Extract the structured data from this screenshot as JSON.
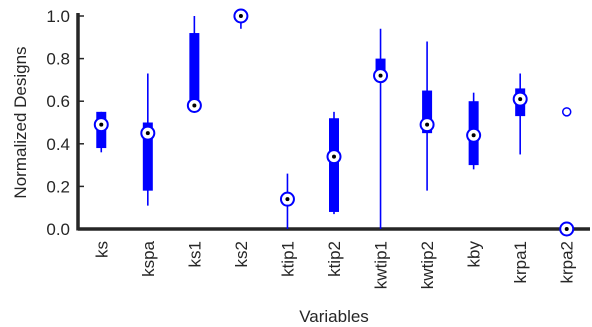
{
  "chart_data": {
    "type": "boxplot",
    "title": "",
    "xlabel": "Variables",
    "ylabel": "Normalized Designs",
    "ylim": [
      0,
      1
    ],
    "yticks": [
      "0.0",
      "0.2",
      "0.4",
      "0.6",
      "0.8",
      "1.0"
    ],
    "grid": false,
    "box_color": "#0000ff",
    "categories": [
      "ks",
      "kspa",
      "ks1",
      "ks2",
      "ktip1",
      "ktip2",
      "kwtip1",
      "kwtip2",
      "kby",
      "krpa1",
      "krpa2"
    ],
    "boxes": [
      {
        "name": "ks",
        "whisker_low": 0.36,
        "q1": 0.38,
        "median": 0.49,
        "q3": 0.55,
        "whisker_high": 0.55,
        "outliers": []
      },
      {
        "name": "kspa",
        "whisker_low": 0.11,
        "q1": 0.18,
        "median": 0.45,
        "q3": 0.5,
        "whisker_high": 0.73,
        "outliers": []
      },
      {
        "name": "ks1",
        "whisker_low": 0.58,
        "q1": 0.58,
        "median": 0.58,
        "q3": 0.92,
        "whisker_high": 1.0,
        "outliers": []
      },
      {
        "name": "ks2",
        "whisker_low": 0.94,
        "q1": 1.0,
        "median": 1.0,
        "q3": 1.0,
        "whisker_high": 1.0,
        "outliers": []
      },
      {
        "name": "ktip1",
        "whisker_low": 0.0,
        "q1": 0.14,
        "median": 0.14,
        "q3": 0.14,
        "whisker_high": 0.26,
        "outliers": []
      },
      {
        "name": "ktip2",
        "whisker_low": 0.07,
        "q1": 0.08,
        "median": 0.34,
        "q3": 0.52,
        "whisker_high": 0.55,
        "outliers": []
      },
      {
        "name": "kwtip1",
        "whisker_low": 0.0,
        "q1": 0.72,
        "median": 0.72,
        "q3": 0.8,
        "whisker_high": 0.94,
        "outliers": []
      },
      {
        "name": "kwtip2",
        "whisker_low": 0.18,
        "q1": 0.45,
        "median": 0.49,
        "q3": 0.65,
        "whisker_high": 0.88,
        "outliers": []
      },
      {
        "name": "kby",
        "whisker_low": 0.28,
        "q1": 0.3,
        "median": 0.44,
        "q3": 0.6,
        "whisker_high": 0.64,
        "outliers": []
      },
      {
        "name": "krpa1",
        "whisker_low": 0.35,
        "q1": 0.53,
        "median": 0.61,
        "q3": 0.66,
        "whisker_high": 0.73,
        "outliers": []
      },
      {
        "name": "krpa2",
        "whisker_low": 0.0,
        "q1": 0.0,
        "median": 0.0,
        "q3": 0.0,
        "whisker_high": 0.0,
        "outliers": [
          0.55
        ]
      }
    ]
  }
}
